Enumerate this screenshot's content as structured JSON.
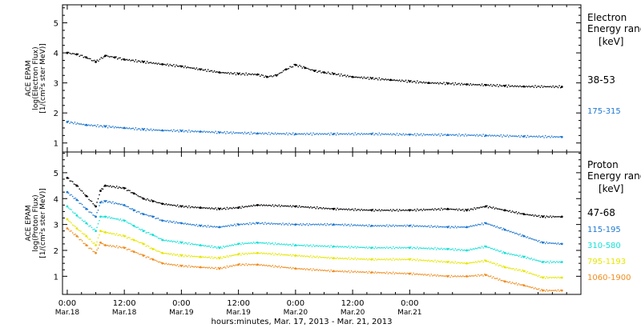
{
  "chart_data": [
    {
      "type": "scatter",
      "panel": "electron",
      "ylabel_lines": [
        "ACE EPAM",
        "log(Electron Flux)",
        "[1/(cm²s ster MeV)]"
      ],
      "ylim": [
        0.7,
        5.6
      ],
      "yticks": [
        "1",
        "2",
        "3",
        "4",
        "5"
      ],
      "legend_title": [
        "Electron",
        "Energy ranges",
        "[keV]"
      ],
      "series": [
        {
          "name": "38-53",
          "color": "#000000",
          "x": [
            0,
            2,
            4,
            6,
            8,
            10,
            12,
            16,
            20,
            24,
            28,
            32,
            36,
            40,
            42,
            44,
            46,
            48,
            50,
            52,
            54,
            56,
            60,
            64,
            68,
            72,
            76,
            80,
            84,
            88,
            92,
            96,
            104
          ],
          "y": [
            4.0,
            3.95,
            3.85,
            3.7,
            3.9,
            3.85,
            3.78,
            3.7,
            3.62,
            3.55,
            3.45,
            3.35,
            3.3,
            3.28,
            3.2,
            3.25,
            3.45,
            3.6,
            3.5,
            3.4,
            3.35,
            3.3,
            3.2,
            3.15,
            3.1,
            3.05,
            3.0,
            2.98,
            2.95,
            2.93,
            2.9,
            2.88,
            2.87
          ]
        },
        {
          "name": "175-315",
          "color": "#1f77d0",
          "x": [
            0,
            4,
            8,
            12,
            16,
            20,
            24,
            28,
            32,
            40,
            48,
            56,
            64,
            72,
            80,
            88,
            96,
            104
          ],
          "y": [
            1.7,
            1.6,
            1.55,
            1.5,
            1.45,
            1.42,
            1.4,
            1.38,
            1.35,
            1.32,
            1.3,
            1.3,
            1.3,
            1.28,
            1.27,
            1.25,
            1.22,
            1.2
          ]
        }
      ]
    },
    {
      "type": "scatter",
      "panel": "proton",
      "ylabel_lines": [
        "ACE EPAM",
        "log(Proton Flux)",
        "[1/(cm²s ster MeV)]"
      ],
      "ylim": [
        0.3,
        5.8
      ],
      "yticks": [
        "1",
        "2",
        "3",
        "4",
        "5"
      ],
      "legend_title": [
        "Proton",
        "Energy ranges",
        "[keV]"
      ],
      "series": [
        {
          "name": "47-68",
          "color": "#000000",
          "x": [
            0,
            2,
            4,
            6,
            7,
            8,
            12,
            14,
            16,
            18,
            20,
            24,
            28,
            32,
            36,
            40,
            48,
            56,
            64,
            72,
            80,
            84,
            88,
            92,
            96,
            100,
            104
          ],
          "y": [
            4.8,
            4.5,
            4.1,
            3.7,
            4.3,
            4.5,
            4.4,
            4.2,
            4.0,
            3.9,
            3.8,
            3.7,
            3.65,
            3.6,
            3.65,
            3.75,
            3.7,
            3.6,
            3.55,
            3.55,
            3.6,
            3.55,
            3.7,
            3.55,
            3.4,
            3.3,
            3.3
          ]
        },
        {
          "name": "115-195",
          "color": "#1f77d0",
          "x": [
            0,
            2,
            4,
            6,
            7,
            8,
            12,
            14,
            16,
            18,
            20,
            24,
            28,
            32,
            36,
            40,
            48,
            56,
            64,
            72,
            80,
            84,
            88,
            92,
            96,
            100,
            104
          ],
          "y": [
            4.25,
            3.95,
            3.6,
            3.3,
            3.85,
            3.9,
            3.75,
            3.55,
            3.4,
            3.3,
            3.15,
            3.05,
            2.95,
            2.9,
            3.0,
            3.05,
            3.0,
            3.0,
            2.95,
            2.95,
            2.9,
            2.9,
            3.05,
            2.8,
            2.55,
            2.3,
            2.25
          ]
        },
        {
          "name": "310-580",
          "color": "#16e0d8",
          "x": [
            0,
            2,
            4,
            6,
            7,
            8,
            12,
            14,
            16,
            18,
            20,
            24,
            28,
            32,
            36,
            40,
            48,
            56,
            64,
            72,
            80,
            84,
            88,
            92,
            96,
            100,
            104
          ],
          "y": [
            3.7,
            3.35,
            3.05,
            2.75,
            3.3,
            3.3,
            3.15,
            2.95,
            2.75,
            2.6,
            2.4,
            2.3,
            2.2,
            2.1,
            2.25,
            2.3,
            2.2,
            2.15,
            2.1,
            2.1,
            2.05,
            2.0,
            2.15,
            1.9,
            1.75,
            1.55,
            1.55
          ]
        },
        {
          "name": "795-1193",
          "color": "#e6e600",
          "x": [
            0,
            2,
            4,
            6,
            7,
            8,
            12,
            14,
            16,
            18,
            20,
            24,
            28,
            32,
            36,
            40,
            48,
            56,
            64,
            72,
            80,
            84,
            88,
            92,
            96,
            100,
            104
          ],
          "y": [
            3.2,
            2.85,
            2.55,
            2.2,
            2.75,
            2.7,
            2.55,
            2.4,
            2.25,
            2.05,
            1.9,
            1.8,
            1.75,
            1.7,
            1.85,
            1.9,
            1.8,
            1.7,
            1.65,
            1.65,
            1.55,
            1.5,
            1.6,
            1.35,
            1.2,
            0.95,
            0.95
          ]
        },
        {
          "name": "1060-1900",
          "color": "#f08c1e",
          "x": [
            0,
            2,
            4,
            6,
            7,
            8,
            12,
            14,
            16,
            18,
            20,
            24,
            28,
            32,
            36,
            40,
            48,
            56,
            64,
            72,
            80,
            84,
            88,
            92,
            96,
            100,
            104
          ],
          "y": [
            2.85,
            2.55,
            2.2,
            1.9,
            2.3,
            2.2,
            2.1,
            1.95,
            1.8,
            1.65,
            1.5,
            1.4,
            1.35,
            1.3,
            1.45,
            1.45,
            1.3,
            1.2,
            1.15,
            1.1,
            1.0,
            1.0,
            1.05,
            0.8,
            0.65,
            0.45,
            0.45
          ]
        }
      ]
    }
  ],
  "x_axis": {
    "xlim": [
      -1,
      108
    ],
    "ticks": [
      {
        "x": 0,
        "time": "0:00",
        "date": "Mar.18"
      },
      {
        "x": 12,
        "time": "12:00",
        "date": "Mar.18"
      },
      {
        "x": 24,
        "time": "0:00",
        "date": "Mar.19"
      },
      {
        "x": 36,
        "time": "12:00",
        "date": "Mar.19"
      },
      {
        "x": 48,
        "time": "0:00",
        "date": "Mar.20"
      },
      {
        "x": 60,
        "time": "12:00",
        "date": "Mar.20"
      },
      {
        "x": 72,
        "time": "0:00",
        "date": "Mar.21"
      }
    ],
    "label": "hours:minutes, Mar. 17, 2013 - Mar. 21, 2013"
  }
}
